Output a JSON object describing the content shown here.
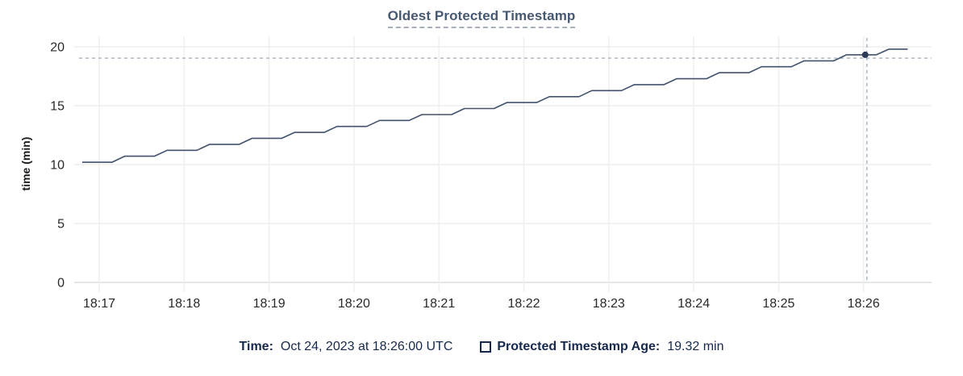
{
  "colors": {
    "title": "#475872",
    "title_underline": "#a6aec0",
    "legend_text": "#16294c",
    "tick_text": "#26282b",
    "grid": "#ededed",
    "grid_zero": "#dedede",
    "series_line": "#42516d",
    "hover_dot": "#2c3957",
    "crosshair": "#a0b4c5"
  },
  "chart_data": {
    "type": "line",
    "title": "Oldest Protected Timestamp",
    "xlabel": "",
    "ylabel": "time (min)",
    "x_tick_labels": [
      "18:17",
      "18:18",
      "18:19",
      "18:20",
      "18:21",
      "18:22",
      "18:23",
      "18:24",
      "18:25",
      "18:26"
    ],
    "y_tick_labels": [
      "0",
      "5",
      "10",
      "15",
      "20"
    ],
    "ylim": [
      0,
      20
    ],
    "grid": true,
    "legend_position": "bottom",
    "x_unit": "minutes after 18:17 UTC",
    "series": [
      {
        "name": "Protected Timestamp Age",
        "unit": "min",
        "points": [
          [
            -0.2,
            10.2
          ],
          [
            0.15,
            10.2
          ],
          [
            0.3,
            10.71
          ],
          [
            0.65,
            10.71
          ],
          [
            0.8,
            11.21
          ],
          [
            1.15,
            11.21
          ],
          [
            1.3,
            11.72
          ],
          [
            1.65,
            11.72
          ],
          [
            1.8,
            12.23
          ],
          [
            2.15,
            12.23
          ],
          [
            2.3,
            12.73
          ],
          [
            2.65,
            12.73
          ],
          [
            2.8,
            13.24
          ],
          [
            3.15,
            13.24
          ],
          [
            3.3,
            13.75
          ],
          [
            3.65,
            13.75
          ],
          [
            3.8,
            14.25
          ],
          [
            4.15,
            14.25
          ],
          [
            4.3,
            14.76
          ],
          [
            4.65,
            14.76
          ],
          [
            4.8,
            15.27
          ],
          [
            5.15,
            15.27
          ],
          [
            5.3,
            15.77
          ],
          [
            5.65,
            15.77
          ],
          [
            5.8,
            16.28
          ],
          [
            6.15,
            16.28
          ],
          [
            6.3,
            16.79
          ],
          [
            6.65,
            16.79
          ],
          [
            6.8,
            17.29
          ],
          [
            7.15,
            17.29
          ],
          [
            7.3,
            17.8
          ],
          [
            7.65,
            17.8
          ],
          [
            7.8,
            18.31
          ],
          [
            8.15,
            18.31
          ],
          [
            8.3,
            18.81
          ],
          [
            8.65,
            18.81
          ],
          [
            8.8,
            19.32
          ],
          [
            9.15,
            19.32
          ],
          [
            9.3,
            19.8
          ],
          [
            9.52,
            19.8
          ]
        ]
      }
    ],
    "hover": {
      "time_offset_min": 9.02,
      "value": 19.32,
      "hline_value": 19.04,
      "time_label": "Oct 24, 2023 at 18:26:00 UTC"
    }
  },
  "legend": {
    "time_label": "Time:",
    "time_value": "Oct 24, 2023 at 18:26:00 UTC",
    "series_swatch": "square-outline",
    "series_label": "Protected Timestamp Age:",
    "series_value": "19.32 min"
  }
}
